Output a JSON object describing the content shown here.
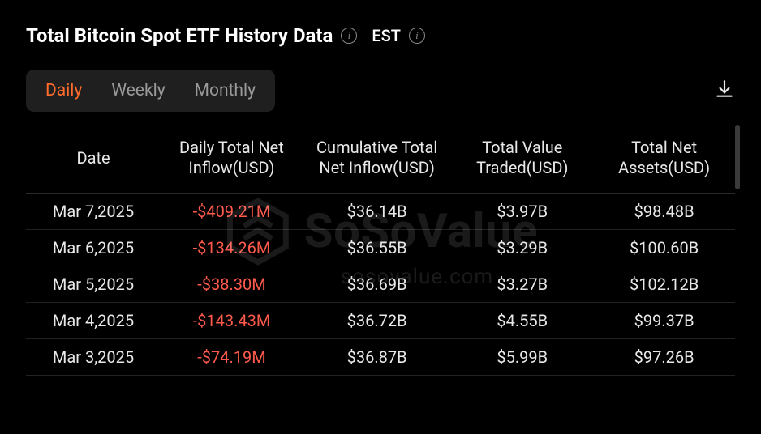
{
  "header": {
    "title": "Total Bitcoin Spot ETF History Data",
    "timezone_label": "EST"
  },
  "tabs": {
    "items": [
      {
        "label": "Daily",
        "active": true
      },
      {
        "label": "Weekly",
        "active": false
      },
      {
        "label": "Monthly",
        "active": false
      }
    ]
  },
  "table": {
    "columns": [
      "Date",
      "Daily Total Net Inflow(USD)",
      "Cumulative Total Net Inflow(USD)",
      "Total Value Traded(USD)",
      "Total Net Assets(USD)"
    ],
    "rows": [
      {
        "date": "Mar 7,2025",
        "inflow": "-$409.21M",
        "inflow_negative": true,
        "cumulative": "$36.14B",
        "traded": "$3.97B",
        "assets": "$98.48B"
      },
      {
        "date": "Mar 6,2025",
        "inflow": "-$134.26M",
        "inflow_negative": true,
        "cumulative": "$36.55B",
        "traded": "$3.29B",
        "assets": "$100.60B"
      },
      {
        "date": "Mar 5,2025",
        "inflow": "-$38.30M",
        "inflow_negative": true,
        "cumulative": "$36.69B",
        "traded": "$3.27B",
        "assets": "$102.12B"
      },
      {
        "date": "Mar 4,2025",
        "inflow": "-$143.43M",
        "inflow_negative": true,
        "cumulative": "$36.72B",
        "traded": "$4.55B",
        "assets": "$99.37B"
      },
      {
        "date": "Mar 3,2025",
        "inflow": "-$74.19M",
        "inflow_negative": true,
        "cumulative": "$36.87B",
        "traded": "$5.99B",
        "assets": "$97.26B"
      }
    ]
  },
  "colors": {
    "background": "#000000",
    "text": "#e8e8e8",
    "muted": "#9a9a9a",
    "accent": "#ff6b2c",
    "negative": "#ff5a4d",
    "tab_bg": "#1f1f1f",
    "border": "#2a2a2a",
    "scrollbar": "#3a3a3a"
  },
  "watermark": {
    "brand": "SoSoValue",
    "url": "sosovalue.com"
  }
}
